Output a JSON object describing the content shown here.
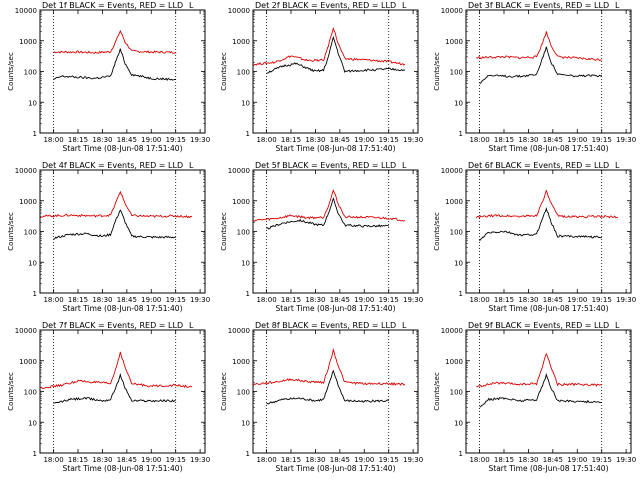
{
  "chart_data": [
    {
      "type": "line",
      "title": "Det 1f BLACK = Events, RED = LLD",
      "corner_label": "L",
      "xlabel": "Start Time (08-Jun-08 17:51:40)",
      "ylabel": "Counts/sec",
      "x_ticks": [
        "18:00",
        "18:15",
        "18:30",
        "18:45",
        "19:00",
        "19:15",
        "19:30"
      ],
      "y_ticks": [
        "1",
        "10",
        "100",
        "1000",
        "10000"
      ],
      "y_scale": "log",
      "ylim": [
        1,
        10000
      ],
      "xlim": [
        "17:51:40",
        "19:33:00"
      ],
      "vlines": [
        "18:00",
        "19:15"
      ],
      "series": [
        {
          "color": "#dd0000",
          "x": [
            "18:00",
            "18:15",
            "18:25",
            "18:35",
            "18:38",
            "18:41",
            "18:44",
            "18:48",
            "19:00",
            "19:15"
          ],
          "values": [
            430,
            430,
            410,
            440,
            900,
            2100,
            900,
            460,
            430,
            420
          ]
        },
        {
          "color": "#000000",
          "x": [
            "18:00",
            "18:05",
            "18:15",
            "18:25",
            "18:35",
            "18:38",
            "18:41",
            "18:44",
            "18:48",
            "19:00",
            "19:15"
          ],
          "values": [
            55,
            70,
            65,
            60,
            70,
            200,
            520,
            180,
            80,
            60,
            55
          ]
        }
      ]
    },
    {
      "type": "line",
      "title": "Det 2f BLACK = Events, RED = LLD",
      "corner_label": "L",
      "xlabel": "Start Time (08-Jun-08 17:51:40)",
      "ylabel": "Counts/sec",
      "x_ticks": [
        "18:00",
        "18:15",
        "18:30",
        "18:45",
        "19:00",
        "19:15",
        "19:30"
      ],
      "y_ticks": [
        "1",
        "10",
        "100",
        "1000",
        "10000"
      ],
      "y_scale": "log",
      "ylim": [
        1,
        10000
      ],
      "xlim": [
        "17:51:40",
        "19:33:00"
      ],
      "vlines": [
        "18:00",
        "19:15"
      ],
      "series": [
        {
          "color": "#dd0000",
          "x": [
            "17:52",
            "18:05",
            "18:15",
            "18:25",
            "18:35",
            "18:38",
            "18:41",
            "18:44",
            "18:48",
            "19:00",
            "19:15",
            "19:25"
          ],
          "values": [
            170,
            200,
            320,
            230,
            230,
            700,
            2700,
            800,
            260,
            240,
            210,
            170
          ]
        },
        {
          "color": "#000000",
          "x": [
            "18:00",
            "18:10",
            "18:18",
            "18:30",
            "18:35",
            "18:38",
            "18:41",
            "18:44",
            "18:48",
            "19:00",
            "19:15",
            "19:25"
          ],
          "values": [
            90,
            150,
            180,
            100,
            110,
            300,
            1300,
            400,
            100,
            110,
            120,
            110
          ]
        }
      ]
    },
    {
      "type": "line",
      "title": "Det 3f BLACK = Events, RED = LLD",
      "corner_label": "L",
      "xlabel": "Start Time (08-Jun-08 17:51:40)",
      "ylabel": "Counts/sec",
      "x_ticks": [
        "18:00",
        "18:15",
        "18:30",
        "18:45",
        "19:00",
        "19:15",
        "19:30"
      ],
      "y_ticks": [
        "1",
        "10",
        "100",
        "1000",
        "10000"
      ],
      "y_scale": "log",
      "ylim": [
        1,
        10000
      ],
      "xlim": [
        "17:51:40",
        "19:33:00"
      ],
      "vlines": [
        "18:00",
        "19:15"
      ],
      "series": [
        {
          "color": "#dd0000",
          "x": [
            "17:58",
            "18:15",
            "18:25",
            "18:35",
            "18:38",
            "18:41",
            "18:44",
            "18:48",
            "19:00",
            "19:15"
          ],
          "values": [
            280,
            300,
            280,
            300,
            700,
            1900,
            700,
            300,
            270,
            240
          ]
        },
        {
          "color": "#000000",
          "x": [
            "18:00",
            "18:05",
            "18:15",
            "18:25",
            "18:35",
            "18:38",
            "18:41",
            "18:44",
            "18:48",
            "19:00",
            "19:15"
          ],
          "values": [
            40,
            75,
            70,
            70,
            80,
            220,
            600,
            200,
            80,
            70,
            75
          ]
        }
      ]
    },
    {
      "type": "line",
      "title": "Det 4f BLACK = Events, RED = LLD",
      "corner_label": "L",
      "xlabel": "Start Time (08-Jun-08 17:51:40)",
      "ylabel": "Counts/sec",
      "x_ticks": [
        "18:00",
        "18:15",
        "18:30",
        "18:45",
        "19:00",
        "19:15",
        "19:30"
      ],
      "y_ticks": [
        "1",
        "10",
        "100",
        "1000",
        "10000"
      ],
      "y_scale": "log",
      "ylim": [
        1,
        10000
      ],
      "xlim": [
        "17:51:40",
        "19:33:00"
      ],
      "vlines": [
        "18:00",
        "19:15"
      ],
      "series": [
        {
          "color": "#dd0000",
          "x": [
            "17:52",
            "18:10",
            "18:25",
            "18:35",
            "18:38",
            "18:41",
            "18:44",
            "18:48",
            "19:00",
            "19:15",
            "19:25"
          ],
          "values": [
            310,
            340,
            320,
            340,
            800,
            2000,
            800,
            330,
            310,
            320,
            300
          ]
        },
        {
          "color": "#000000",
          "x": [
            "18:00",
            "18:10",
            "18:20",
            "18:30",
            "18:35",
            "18:38",
            "18:41",
            "18:44",
            "18:48",
            "19:00",
            "19:15"
          ],
          "values": [
            60,
            80,
            85,
            70,
            80,
            220,
            500,
            200,
            70,
            65,
            65
          ]
        }
      ]
    },
    {
      "type": "line",
      "title": "Det 5f BLACK = Events, RED = LLD",
      "corner_label": "L",
      "xlabel": "Start Time (08-Jun-08 17:51:40)",
      "ylabel": "Counts/sec",
      "x_ticks": [
        "18:00",
        "18:15",
        "18:30",
        "18:45",
        "19:00",
        "19:15",
        "19:30"
      ],
      "y_ticks": [
        "1",
        "10",
        "100",
        "1000",
        "10000"
      ],
      "y_scale": "log",
      "ylim": [
        1,
        10000
      ],
      "xlim": [
        "17:51:40",
        "19:33:00"
      ],
      "vlines": [
        "18:00",
        "19:15"
      ],
      "series": [
        {
          "color": "#dd0000",
          "x": [
            "17:52",
            "18:05",
            "18:15",
            "18:25",
            "18:35",
            "18:38",
            "18:41",
            "18:44",
            "18:48",
            "19:00",
            "19:15",
            "19:25"
          ],
          "values": [
            230,
            260,
            330,
            280,
            290,
            700,
            2200,
            800,
            300,
            290,
            270,
            230
          ]
        },
        {
          "color": "#000000",
          "x": [
            "18:00",
            "18:10",
            "18:20",
            "18:30",
            "18:35",
            "18:38",
            "18:41",
            "18:44",
            "18:48",
            "19:00",
            "19:15"
          ],
          "values": [
            120,
            190,
            230,
            170,
            160,
            400,
            1100,
            400,
            160,
            150,
            150
          ]
        }
      ]
    },
    {
      "type": "line",
      "title": "Det 6f BLACK = Events, RED = LLD",
      "corner_label": "L",
      "xlabel": "Start Time (08-Jun-08 17:51:40)",
      "ylabel": "Counts/sec",
      "x_ticks": [
        "18:00",
        "18:15",
        "18:30",
        "18:45",
        "19:00",
        "19:15",
        "19:30"
      ],
      "y_ticks": [
        "1",
        "10",
        "100",
        "1000",
        "10000"
      ],
      "y_scale": "log",
      "ylim": [
        1,
        10000
      ],
      "xlim": [
        "17:51:40",
        "19:33:00"
      ],
      "vlines": [
        "18:00",
        "19:15"
      ],
      "series": [
        {
          "color": "#dd0000",
          "x": [
            "17:58",
            "18:10",
            "18:25",
            "18:35",
            "18:38",
            "18:41",
            "18:44",
            "18:48",
            "19:00",
            "19:15",
            "19:25"
          ],
          "values": [
            290,
            330,
            310,
            330,
            800,
            2000,
            800,
            320,
            300,
            310,
            290
          ]
        },
        {
          "color": "#000000",
          "x": [
            "18:00",
            "18:05",
            "18:15",
            "18:25",
            "18:35",
            "18:38",
            "18:41",
            "18:44",
            "18:48",
            "19:00",
            "19:15"
          ],
          "values": [
            50,
            90,
            100,
            75,
            80,
            220,
            560,
            200,
            70,
            70,
            65
          ]
        }
      ]
    },
    {
      "type": "line",
      "title": "Det 7f BLACK = Events, RED = LLD",
      "corner_label": "L",
      "xlabel": "Start Time (08-Jun-08 17:51:40)",
      "ylabel": "Counts/sec",
      "x_ticks": [
        "18:00",
        "18:15",
        "18:30",
        "18:45",
        "19:00",
        "19:15",
        "19:30"
      ],
      "y_ticks": [
        "1",
        "10",
        "100",
        "1000",
        "10000"
      ],
      "y_scale": "log",
      "ylim": [
        1,
        10000
      ],
      "xlim": [
        "17:51:40",
        "19:33:00"
      ],
      "vlines": [
        "18:00",
        "19:15"
      ],
      "series": [
        {
          "color": "#dd0000",
          "x": [
            "17:52",
            "18:05",
            "18:15",
            "18:25",
            "18:35",
            "18:38",
            "18:41",
            "18:44",
            "18:48",
            "19:00",
            "19:15",
            "19:25"
          ],
          "values": [
            130,
            160,
            220,
            200,
            180,
            500,
            1900,
            600,
            180,
            150,
            160,
            140
          ]
        },
        {
          "color": "#000000",
          "x": [
            "18:00",
            "18:10",
            "18:20",
            "18:30",
            "18:35",
            "18:38",
            "18:41",
            "18:44",
            "18:48",
            "19:00",
            "19:15"
          ],
          "values": [
            40,
            55,
            60,
            50,
            55,
            130,
            330,
            130,
            50,
            50,
            50
          ]
        }
      ]
    },
    {
      "type": "line",
      "title": "Det 8f BLACK = Events, RED = LLD",
      "corner_label": "L",
      "xlabel": "Start Time (08-Jun-08 17:51:40)",
      "ylabel": "Counts/sec",
      "x_ticks": [
        "18:00",
        "18:15",
        "18:30",
        "18:45",
        "19:00",
        "19:15",
        "19:30"
      ],
      "y_ticks": [
        "1",
        "10",
        "100",
        "1000",
        "10000"
      ],
      "y_scale": "log",
      "ylim": [
        1,
        10000
      ],
      "xlim": [
        "17:51:40",
        "19:33:00"
      ],
      "vlines": [
        "18:00",
        "19:15"
      ],
      "series": [
        {
          "color": "#dd0000",
          "x": [
            "17:52",
            "18:05",
            "18:15",
            "18:25",
            "18:35",
            "18:38",
            "18:41",
            "18:44",
            "18:48",
            "19:00",
            "19:15",
            "19:25"
          ],
          "values": [
            170,
            200,
            250,
            210,
            200,
            600,
            2200,
            700,
            200,
            180,
            180,
            170
          ]
        },
        {
          "color": "#000000",
          "x": [
            "18:00",
            "18:10",
            "18:20",
            "18:30",
            "18:35",
            "18:38",
            "18:41",
            "18:44",
            "18:48",
            "19:00",
            "19:15"
          ],
          "values": [
            40,
            55,
            60,
            50,
            55,
            150,
            480,
            160,
            50,
            48,
            50
          ]
        }
      ]
    },
    {
      "type": "line",
      "title": "Det 9f BLACK = Events, RED = LLD",
      "corner_label": "L",
      "xlabel": "Start Time (08-Jun-08 17:51:40)",
      "ylabel": "Counts/sec",
      "x_ticks": [
        "18:00",
        "18:15",
        "18:30",
        "18:45",
        "19:00",
        "19:15",
        "19:30"
      ],
      "y_ticks": [
        "1",
        "10",
        "100",
        "1000",
        "10000"
      ],
      "y_scale": "log",
      "ylim": [
        1,
        10000
      ],
      "xlim": [
        "17:51:40",
        "19:33:00"
      ],
      "vlines": [
        "18:00",
        "19:15"
      ],
      "series": [
        {
          "color": "#dd0000",
          "x": [
            "17:58",
            "18:10",
            "18:25",
            "18:35",
            "18:38",
            "18:41",
            "18:44",
            "18:48",
            "19:00",
            "19:15"
          ],
          "values": [
            140,
            190,
            170,
            180,
            500,
            1800,
            600,
            170,
            170,
            160
          ]
        },
        {
          "color": "#000000",
          "x": [
            "18:00",
            "18:05",
            "18:15",
            "18:25",
            "18:35",
            "18:38",
            "18:41",
            "18:44",
            "18:48",
            "19:00",
            "19:15"
          ],
          "values": [
            30,
            55,
            60,
            50,
            55,
            130,
            330,
            130,
            50,
            48,
            45
          ]
        }
      ]
    }
  ]
}
